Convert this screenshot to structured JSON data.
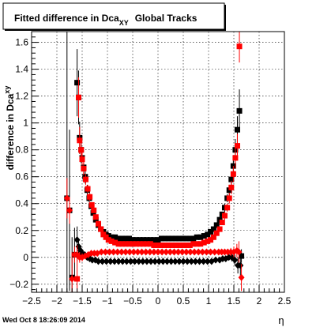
{
  "chart_data": {
    "type": "scatter",
    "title_main": "Fitted difference in Dca",
    "title_sub": "XY",
    "title_rest": "Global Tracks",
    "ylabel": "difference in Dca",
    "ylabel_sub": "xy",
    "xlabel": "η",
    "footer": "Wed Oct  8 18:26:09 2014",
    "xlim": [
      -2.5,
      2.5
    ],
    "ylim": [
      -0.26,
      1.68
    ],
    "x_ticks": [
      -2.5,
      -2,
      -1.5,
      -1,
      -0.5,
      0,
      0.5,
      1,
      1.5,
      2,
      2.5
    ],
    "x_tick_labels": [
      "−2.5",
      "−2",
      "−1.5",
      "−1",
      "−0.5",
      "0",
      "0.5",
      "1",
      "1.5",
      "2",
      "2.5"
    ],
    "y_ticks": [
      -0.2,
      0,
      0.2,
      0.4,
      0.6,
      0.8,
      1,
      1.2,
      1.4,
      1.6
    ],
    "y_tick_labels": [
      "−0.2",
      "0",
      "0.2",
      "0.4",
      "0.6",
      "0.8",
      "1",
      "1.2",
      "1.4",
      "1.6"
    ],
    "grid": true,
    "colors": {
      "black": "#000000",
      "red": "#ff0000"
    },
    "series": [
      {
        "color": "black",
        "marker": "square",
        "points": [
          [
            -1.8,
            0.44,
            1.9
          ],
          [
            -1.75,
            0.35,
            0.6
          ],
          [
            -1.7,
            -0.15,
            0.3
          ],
          [
            -1.65,
            0.02,
            0.2
          ],
          [
            -1.6,
            1.3,
            0.25
          ],
          [
            -1.57,
            1.19,
            0.2
          ],
          [
            -1.55,
            0.89,
            0.12
          ],
          [
            -1.52,
            0.8,
            0.1
          ],
          [
            -1.5,
            0.74,
            0.08
          ],
          [
            -1.47,
            0.67,
            0.06
          ],
          [
            -1.44,
            0.6,
            0.05
          ],
          [
            -1.4,
            0.5,
            0.04
          ],
          [
            -1.36,
            0.44,
            0.03
          ],
          [
            -1.32,
            0.38,
            0.02
          ],
          [
            -1.28,
            0.33,
            0.02
          ],
          [
            -1.23,
            0.28,
            0.02
          ],
          [
            -1.18,
            0.24,
            0.015
          ],
          [
            -1.13,
            0.21,
            0.01
          ],
          [
            -1.08,
            0.19,
            0.01
          ],
          [
            -1.03,
            0.17,
            0.01
          ],
          [
            -0.98,
            0.16,
            0.01
          ],
          [
            -0.92,
            0.15,
            0.01
          ],
          [
            -0.85,
            0.15,
            0.01
          ],
          [
            -0.78,
            0.14,
            0.01
          ],
          [
            -0.71,
            0.14,
            0.01
          ],
          [
            -0.64,
            0.14,
            0.01
          ],
          [
            -0.57,
            0.14,
            0.01
          ],
          [
            -0.5,
            0.13,
            0.01
          ],
          [
            -0.43,
            0.13,
            0.01
          ],
          [
            -0.36,
            0.13,
            0.01
          ],
          [
            -0.29,
            0.13,
            0.01
          ],
          [
            -0.22,
            0.13,
            0.01
          ],
          [
            -0.15,
            0.13,
            0.01
          ],
          [
            -0.08,
            0.13,
            0.01
          ],
          [
            0.0,
            0.13,
            0.01
          ],
          [
            0.07,
            0.14,
            0.01
          ],
          [
            0.14,
            0.14,
            0.01
          ],
          [
            0.21,
            0.14,
            0.01
          ],
          [
            0.28,
            0.14,
            0.01
          ],
          [
            0.35,
            0.14,
            0.01
          ],
          [
            0.42,
            0.14,
            0.01
          ],
          [
            0.49,
            0.14,
            0.01
          ],
          [
            0.56,
            0.14,
            0.01
          ],
          [
            0.63,
            0.14,
            0.01
          ],
          [
            0.7,
            0.14,
            0.01
          ],
          [
            0.77,
            0.15,
            0.01
          ],
          [
            0.84,
            0.15,
            0.01
          ],
          [
            0.91,
            0.16,
            0.01
          ],
          [
            0.98,
            0.17,
            0.01
          ],
          [
            1.04,
            0.19,
            0.01
          ],
          [
            1.1,
            0.21,
            0.015
          ],
          [
            1.16,
            0.24,
            0.015
          ],
          [
            1.22,
            0.28,
            0.02
          ],
          [
            1.27,
            0.32,
            0.02
          ],
          [
            1.32,
            0.37,
            0.03
          ],
          [
            1.37,
            0.44,
            0.03
          ],
          [
            1.41,
            0.5,
            0.04
          ],
          [
            1.45,
            0.58,
            0.05
          ],
          [
            1.49,
            0.68,
            0.06
          ],
          [
            1.53,
            0.8,
            0.08
          ],
          [
            1.57,
            0.95,
            0.1
          ],
          [
            1.61,
            1.09,
            0.16
          ],
          [
            1.65,
            0.01,
            0.05
          ]
        ]
      },
      {
        "color": "black",
        "marker": "diamond",
        "points": [
          [
            -1.6,
            0.13,
            0.1
          ],
          [
            -1.57,
            0.08,
            0.06
          ],
          [
            -1.53,
            0.05,
            0.04
          ],
          [
            -1.5,
            0.03,
            0.03
          ],
          [
            -1.45,
            0.02,
            0.02
          ],
          [
            -1.4,
            0.0,
            0.02
          ],
          [
            -1.35,
            -0.01,
            0.015
          ],
          [
            -1.3,
            -0.02,
            0.01
          ],
          [
            -1.24,
            -0.02,
            0.01
          ],
          [
            -1.18,
            -0.03,
            0.01
          ],
          [
            -1.1,
            -0.03,
            0.01
          ],
          [
            -1.02,
            -0.03,
            0.01
          ],
          [
            -0.94,
            -0.03,
            0.01
          ],
          [
            -0.86,
            -0.03,
            0.01
          ],
          [
            -0.78,
            -0.03,
            0.01
          ],
          [
            -0.7,
            -0.03,
            0.01
          ],
          [
            -0.62,
            -0.03,
            0.01
          ],
          [
            -0.54,
            -0.03,
            0.01
          ],
          [
            -0.46,
            -0.03,
            0.01
          ],
          [
            -0.38,
            -0.03,
            0.01
          ],
          [
            -0.3,
            -0.03,
            0.01
          ],
          [
            -0.22,
            -0.03,
            0.01
          ],
          [
            -0.14,
            -0.03,
            0.01
          ],
          [
            -0.06,
            -0.03,
            0.01
          ],
          [
            0.02,
            -0.03,
            0.01
          ],
          [
            0.1,
            -0.03,
            0.01
          ],
          [
            0.18,
            -0.03,
            0.01
          ],
          [
            0.26,
            -0.03,
            0.01
          ],
          [
            0.34,
            -0.03,
            0.01
          ],
          [
            0.42,
            -0.03,
            0.01
          ],
          [
            0.5,
            -0.03,
            0.01
          ],
          [
            0.58,
            -0.03,
            0.01
          ],
          [
            0.66,
            -0.03,
            0.01
          ],
          [
            0.74,
            -0.03,
            0.01
          ],
          [
            0.82,
            -0.03,
            0.01
          ],
          [
            0.9,
            -0.03,
            0.01
          ],
          [
            0.98,
            -0.03,
            0.01
          ],
          [
            1.06,
            -0.03,
            0.01
          ],
          [
            1.14,
            -0.02,
            0.01
          ],
          [
            1.22,
            -0.02,
            0.01
          ],
          [
            1.28,
            -0.01,
            0.015
          ],
          [
            1.34,
            -0.01,
            0.02
          ],
          [
            1.4,
            0.0,
            0.02
          ],
          [
            1.46,
            0.0,
            0.03
          ],
          [
            1.52,
            -0.02,
            0.04
          ],
          [
            1.58,
            -0.06,
            0.06
          ],
          [
            1.63,
            -0.06,
            0.1
          ]
        ]
      },
      {
        "color": "red",
        "marker": "square",
        "points": [
          [
            -1.6,
            -0.16,
            0.25
          ],
          [
            -1.57,
            1.19,
            0.15
          ],
          [
            -1.55,
            0.87,
            0.1
          ],
          [
            -1.52,
            0.8,
            0.08
          ],
          [
            -1.5,
            0.73,
            0.07
          ],
          [
            -1.47,
            0.66,
            0.05
          ],
          [
            -1.43,
            0.58,
            0.04
          ],
          [
            -1.39,
            0.51,
            0.03
          ],
          [
            -1.35,
            0.45,
            0.03
          ],
          [
            -1.31,
            0.39,
            0.02
          ],
          [
            -1.27,
            0.35,
            0.02
          ],
          [
            -1.23,
            0.3,
            0.015
          ],
          [
            -1.18,
            0.25,
            0.015
          ],
          [
            -1.13,
            0.21,
            0.01
          ],
          [
            -1.08,
            0.17,
            0.01
          ],
          [
            -1.03,
            0.15,
            0.01
          ],
          [
            -0.98,
            0.13,
            0.01
          ],
          [
            -0.92,
            0.12,
            0.01
          ],
          [
            -0.85,
            0.11,
            0.01
          ],
          [
            -0.78,
            0.1,
            0.01
          ],
          [
            -0.71,
            0.1,
            0.01
          ],
          [
            -0.64,
            0.1,
            0.01
          ],
          [
            -0.57,
            0.1,
            0.01
          ],
          [
            -0.5,
            0.1,
            0.01
          ],
          [
            -0.43,
            0.1,
            0.01
          ],
          [
            -0.36,
            0.1,
            0.01
          ],
          [
            -0.29,
            0.1,
            0.01
          ],
          [
            -0.22,
            0.1,
            0.01
          ],
          [
            -0.15,
            0.1,
            0.01
          ],
          [
            -0.08,
            0.09,
            0.01
          ],
          [
            0.0,
            0.09,
            0.01
          ],
          [
            0.07,
            0.09,
            0.01
          ],
          [
            0.14,
            0.09,
            0.01
          ],
          [
            0.21,
            0.09,
            0.01
          ],
          [
            0.28,
            0.09,
            0.01
          ],
          [
            0.35,
            0.09,
            0.01
          ],
          [
            0.42,
            0.09,
            0.01
          ],
          [
            0.49,
            0.09,
            0.01
          ],
          [
            0.56,
            0.09,
            0.01
          ],
          [
            0.63,
            0.09,
            0.01
          ],
          [
            0.7,
            0.1,
            0.01
          ],
          [
            0.77,
            0.1,
            0.01
          ],
          [
            0.84,
            0.1,
            0.01
          ],
          [
            0.91,
            0.11,
            0.01
          ],
          [
            0.98,
            0.12,
            0.01
          ],
          [
            1.04,
            0.13,
            0.01
          ],
          [
            1.1,
            0.15,
            0.01
          ],
          [
            1.16,
            0.18,
            0.015
          ],
          [
            1.22,
            0.21,
            0.02
          ],
          [
            1.27,
            0.26,
            0.02
          ],
          [
            1.32,
            0.31,
            0.03
          ],
          [
            1.37,
            0.37,
            0.03
          ],
          [
            1.41,
            0.44,
            0.04
          ],
          [
            1.45,
            0.52,
            0.05
          ],
          [
            1.49,
            0.62,
            0.06
          ],
          [
            1.53,
            0.74,
            0.08
          ],
          [
            1.57,
            0.83,
            0.09
          ],
          [
            1.61,
            1.57,
            0.12
          ]
        ]
      },
      {
        "color": "red",
        "marker": "diamond",
        "points": [
          [
            -1.8,
            0.44,
            0.15
          ],
          [
            -1.75,
            0.35,
            0.1
          ],
          [
            -1.7,
            -0.16,
            0.2
          ],
          [
            -1.65,
            0.02,
            0.06
          ],
          [
            -1.6,
            0.02,
            0.05
          ],
          [
            -1.55,
            0.0,
            0.04
          ],
          [
            -1.5,
            0.0,
            0.03
          ],
          [
            -1.44,
            0.01,
            0.02
          ],
          [
            -1.38,
            0.02,
            0.02
          ],
          [
            -1.32,
            0.03,
            0.015
          ],
          [
            -1.26,
            0.03,
            0.01
          ],
          [
            -1.2,
            0.03,
            0.01
          ],
          [
            -1.12,
            0.04,
            0.01
          ],
          [
            -1.04,
            0.04,
            0.01
          ],
          [
            -0.96,
            0.04,
            0.01
          ],
          [
            -0.88,
            0.04,
            0.01
          ],
          [
            -0.8,
            0.04,
            0.01
          ],
          [
            -0.72,
            0.04,
            0.01
          ],
          [
            -0.64,
            0.04,
            0.01
          ],
          [
            -0.56,
            0.04,
            0.01
          ],
          [
            -0.48,
            0.04,
            0.01
          ],
          [
            -0.4,
            0.04,
            0.01
          ],
          [
            -0.32,
            0.04,
            0.01
          ],
          [
            -0.24,
            0.04,
            0.01
          ],
          [
            -0.16,
            0.04,
            0.01
          ],
          [
            -0.08,
            0.04,
            0.01
          ],
          [
            0.0,
            0.04,
            0.01
          ],
          [
            0.08,
            0.04,
            0.01
          ],
          [
            0.16,
            0.04,
            0.01
          ],
          [
            0.24,
            0.04,
            0.01
          ],
          [
            0.32,
            0.04,
            0.01
          ],
          [
            0.4,
            0.04,
            0.01
          ],
          [
            0.48,
            0.04,
            0.01
          ],
          [
            0.56,
            0.04,
            0.01
          ],
          [
            0.64,
            0.04,
            0.01
          ],
          [
            0.72,
            0.04,
            0.01
          ],
          [
            0.8,
            0.04,
            0.01
          ],
          [
            0.88,
            0.04,
            0.01
          ],
          [
            0.96,
            0.04,
            0.01
          ],
          [
            1.04,
            0.04,
            0.01
          ],
          [
            1.12,
            0.04,
            0.01
          ],
          [
            1.2,
            0.04,
            0.01
          ],
          [
            1.26,
            0.04,
            0.015
          ],
          [
            1.32,
            0.04,
            0.02
          ],
          [
            1.38,
            0.04,
            0.02
          ],
          [
            1.44,
            0.04,
            0.03
          ],
          [
            1.5,
            0.04,
            0.04
          ],
          [
            1.56,
            0.05,
            0.05
          ],
          [
            1.6,
            0.04,
            0.08
          ],
          [
            1.65,
            -0.15,
            0.1
          ]
        ]
      }
    ]
  }
}
